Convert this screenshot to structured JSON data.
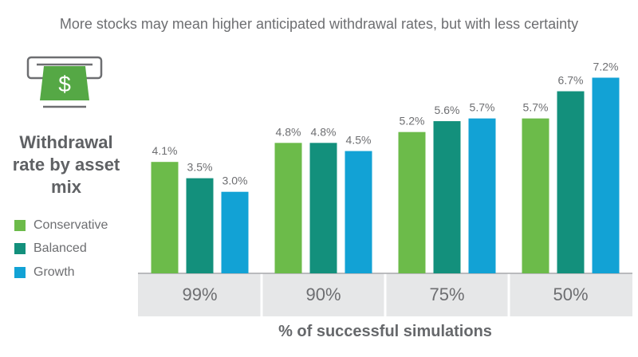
{
  "chart_data": {
    "type": "bar",
    "title": "More stocks may mean higher anticipated withdrawal rates, but with less certainty",
    "side_title": "Withdrawal rate by asset mix",
    "xlabel": "% of successful simulations",
    "ylabel": "",
    "categories": [
      "99%",
      "90%",
      "75%",
      "50%"
    ],
    "series": [
      {
        "name": "Conservative",
        "color": "#6cbb4a",
        "values": [
          4.1,
          4.8,
          5.2,
          5.7
        ],
        "labels": [
          "4.1%",
          "4.8%",
          "5.2%",
          "5.7%"
        ]
      },
      {
        "name": "Balanced",
        "color": "#13907c",
        "values": [
          3.5,
          4.8,
          5.6,
          6.7
        ],
        "labels": [
          "3.5%",
          "4.8%",
          "5.6%",
          "6.7%"
        ]
      },
      {
        "name": "Growth",
        "color": "#12a2d5",
        "values": [
          3.0,
          4.5,
          5.7,
          7.2
        ],
        "labels": [
          "3.0%",
          "4.5%",
          "5.7%",
          "7.2%"
        ]
      }
    ],
    "ylim": [
      0,
      7.5
    ],
    "grid": false,
    "legend_placement": "left"
  },
  "icon": "cash-withdrawal-icon"
}
